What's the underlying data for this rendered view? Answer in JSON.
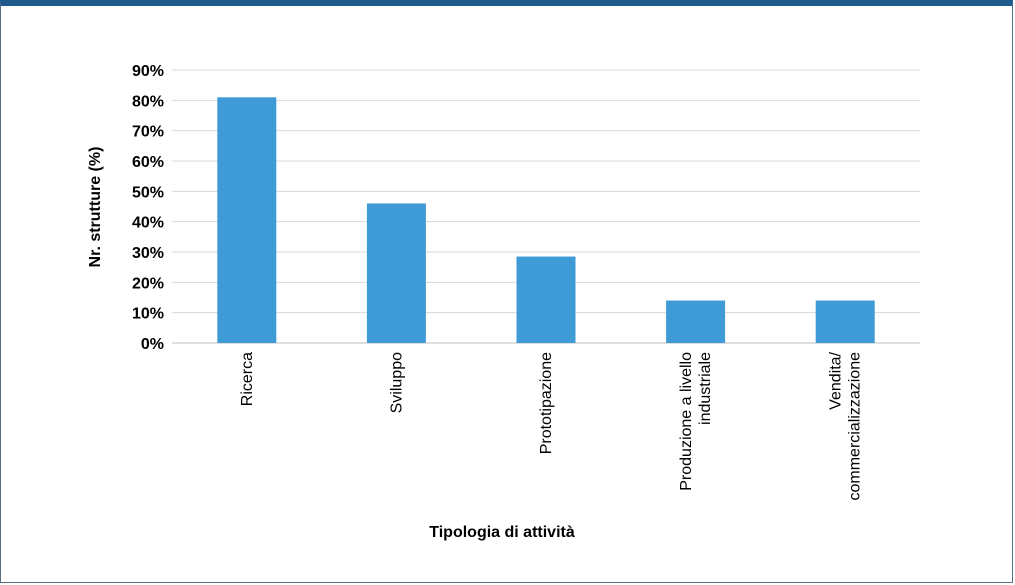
{
  "chart_data": {
    "type": "bar",
    "categories": [
      [
        "Ricerca"
      ],
      [
        "Sviluppo"
      ],
      [
        "Prototipazione"
      ],
      [
        "Produzione a livello",
        "industriale"
      ],
      [
        "Vendita/",
        "commercializzazione"
      ]
    ],
    "values": [
      81,
      46,
      28.5,
      14,
      14
    ],
    "xlabel": "Tipologia di attività",
    "ylabel": "Nr. strutture (%)",
    "ylim": [
      0,
      90
    ],
    "ytick_labels": [
      "0%",
      "10%",
      "20%",
      "30%",
      "40%",
      "50%",
      "60%",
      "70%",
      "80%",
      "90%"
    ],
    "grid": true,
    "legend": "none",
    "bar_color": "#3f9bd5",
    "grid_color": "#d9d9d9"
  }
}
